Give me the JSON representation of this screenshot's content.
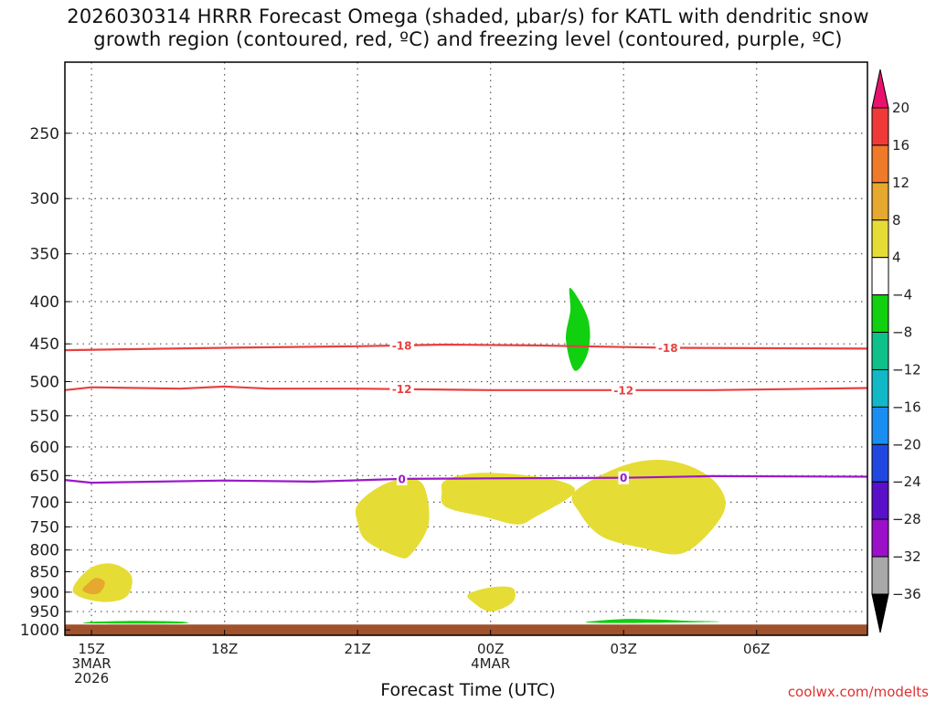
{
  "title_line1": "2026030314 HRRR Forecast Omega (shaded, μbar/s) for KATL with dendritic snow",
  "title_line2": "growth region (contoured, red, ºC) and freezing level (contoured, purple, ºC)",
  "xlabel": "Forecast Time (UTC)",
  "credit": "coolwx.com/modelts",
  "chart_data": {
    "type": "heatmap",
    "title": "2026030314 HRRR Forecast Omega (shaded, μbar/s) for KATL with dendritic snow growth region (contoured, red, ºC) and freezing level (contoured, purple, ºC)",
    "xlabel": "Forecast Time (UTC)",
    "ylabel": "",
    "x_range_hours": [
      -0.6,
      17.5
    ],
    "y_range_mb": [
      1015,
      205
    ],
    "y_scale": "log",
    "y_ticks": [
      250,
      300,
      350,
      400,
      450,
      500,
      550,
      600,
      650,
      700,
      750,
      800,
      850,
      900,
      950,
      1000
    ],
    "x_ticks": [
      {
        "hour": 0,
        "label": "15Z",
        "sub1": "3MAR",
        "sub2": "2026"
      },
      {
        "hour": 3,
        "label": "18Z",
        "sub1": "",
        "sub2": ""
      },
      {
        "hour": 6,
        "label": "21Z",
        "sub1": "",
        "sub2": ""
      },
      {
        "hour": 9,
        "label": "00Z",
        "sub1": "4MAR",
        "sub2": ""
      },
      {
        "hour": 12,
        "label": "03Z",
        "sub1": "",
        "sub2": ""
      },
      {
        "hour": 15,
        "label": "06Z",
        "sub1": "",
        "sub2": ""
      }
    ],
    "grid": true,
    "ground_level_mb": 985,
    "colorbar": {
      "levels": [
        20,
        16,
        12,
        8,
        4,
        -4,
        -8,
        -12,
        -16,
        -20,
        -24,
        -28,
        -32,
        -36
      ],
      "colors": [
        "#e8126e",
        "#f03a3a",
        "#ee7a2a",
        "#e6a82e",
        "#e6dc36",
        "#ffffff",
        "#10d010",
        "#10c08a",
        "#12b8c6",
        "#1a8ef0",
        "#2048e0",
        "#5a10c8",
        "#9a10c8",
        "#a8a8a8",
        "#000000"
      ]
    },
    "contours": [
      {
        "value": -18,
        "label": "-18",
        "color": "#e84040",
        "points": [
          [
            -1,
            458
          ],
          [
            3,
            455
          ],
          [
            6,
            453
          ],
          [
            7,
            452
          ],
          [
            8,
            451
          ],
          [
            10,
            452
          ],
          [
            13,
            455
          ],
          [
            17.5,
            456
          ]
        ],
        "label_hours": [
          7,
          13
        ]
      },
      {
        "value": -12,
        "label": "-12",
        "color": "#e84040",
        "points": [
          [
            -1,
            512
          ],
          [
            0,
            508
          ],
          [
            2,
            510
          ],
          [
            3,
            507
          ],
          [
            4,
            510
          ],
          [
            6,
            510
          ],
          [
            9,
            512
          ],
          [
            12,
            512
          ],
          [
            14,
            512
          ],
          [
            17.5,
            509
          ]
        ],
        "label_hours": [
          7,
          12
        ]
      },
      {
        "value": 0,
        "label": "0",
        "color": "#9a18c8",
        "points": [
          [
            -1,
            658
          ],
          [
            0,
            663
          ],
          [
            3,
            659
          ],
          [
            5,
            661
          ],
          [
            7,
            656
          ],
          [
            9,
            655
          ],
          [
            12,
            654
          ],
          [
            14,
            651
          ],
          [
            17.5,
            652
          ]
        ],
        "label_hours": [
          7,
          12
        ]
      }
    ],
    "regions": [
      {
        "value_range": [
          4,
          8
        ],
        "color": "#e6dc36",
        "points": [
          [
            -0.4,
            885
          ],
          [
            0,
            840
          ],
          [
            0.5,
            832
          ],
          [
            0.9,
            860
          ],
          [
            0.8,
            910
          ],
          [
            0.3,
            925
          ],
          [
            -0.3,
            910
          ]
        ]
      },
      {
        "value_range": [
          8,
          12
        ],
        "color": "#e6a82e",
        "points": [
          [
            -0.1,
            880
          ],
          [
            0.1,
            865
          ],
          [
            0.3,
            875
          ],
          [
            0.2,
            900
          ],
          [
            0,
            905
          ],
          [
            -0.2,
            895
          ]
        ]
      },
      {
        "value_range": [
          4,
          8
        ],
        "color": "#e6dc36",
        "points": [
          [
            6,
            705
          ],
          [
            6.5,
            670
          ],
          [
            7.1,
            655
          ],
          [
            7.5,
            670
          ],
          [
            7.6,
            745
          ],
          [
            7.2,
            810
          ],
          [
            6.9,
            815
          ],
          [
            6.2,
            780
          ],
          [
            6,
            740
          ]
        ]
      },
      {
        "value_range": [
          4,
          8
        ],
        "color": "#e6dc36",
        "points": [
          [
            8,
            658
          ],
          [
            8.8,
            645
          ],
          [
            10.3,
            655
          ],
          [
            10.9,
            680
          ],
          [
            10,
            730
          ],
          [
            9.6,
            745
          ],
          [
            8.9,
            730
          ],
          [
            8,
            710
          ],
          [
            7.9,
            680
          ]
        ]
      },
      {
        "value_range": [
          4,
          8
        ],
        "color": "#e6dc36",
        "points": [
          [
            10.9,
            680
          ],
          [
            12,
            632
          ],
          [
            13,
            623
          ],
          [
            13.9,
            650
          ],
          [
            14.3,
            700
          ],
          [
            14,
            755
          ],
          [
            13.3,
            808
          ],
          [
            12.4,
            795
          ],
          [
            11.5,
            770
          ],
          [
            11,
            720
          ]
        ]
      },
      {
        "value_range": [
          4,
          8
        ],
        "color": "#e6dc36",
        "points": [
          [
            8.5,
            905
          ],
          [
            9,
            888
          ],
          [
            9.5,
            890
          ],
          [
            9.5,
            925
          ],
          [
            9,
            950
          ],
          [
            8.6,
            925
          ]
        ]
      },
      {
        "value_range": [
          -8,
          -4
        ],
        "color": "#10d010",
        "points": [
          [
            10.8,
            385
          ],
          [
            11.2,
            420
          ],
          [
            11.2,
            460
          ],
          [
            10.9,
            485
          ],
          [
            10.7,
            445
          ],
          [
            10.8,
            410
          ]
        ]
      },
      {
        "value_range": [
          -8,
          -4
        ],
        "color": "#10d010",
        "points": [
          [
            0,
            978
          ],
          [
            1,
            975
          ],
          [
            2,
            977
          ],
          [
            2,
            982
          ],
          [
            0,
            982
          ]
        ]
      },
      {
        "value_range": [
          -8,
          -4
        ],
        "color": "#10d010",
        "points": [
          [
            11.2,
            977
          ],
          [
            12,
            970
          ],
          [
            12.9,
            972
          ],
          [
            13.5,
            975
          ],
          [
            14,
            976
          ],
          [
            14,
            978
          ],
          [
            12,
            981
          ],
          [
            11.3,
            980
          ]
        ]
      }
    ]
  }
}
